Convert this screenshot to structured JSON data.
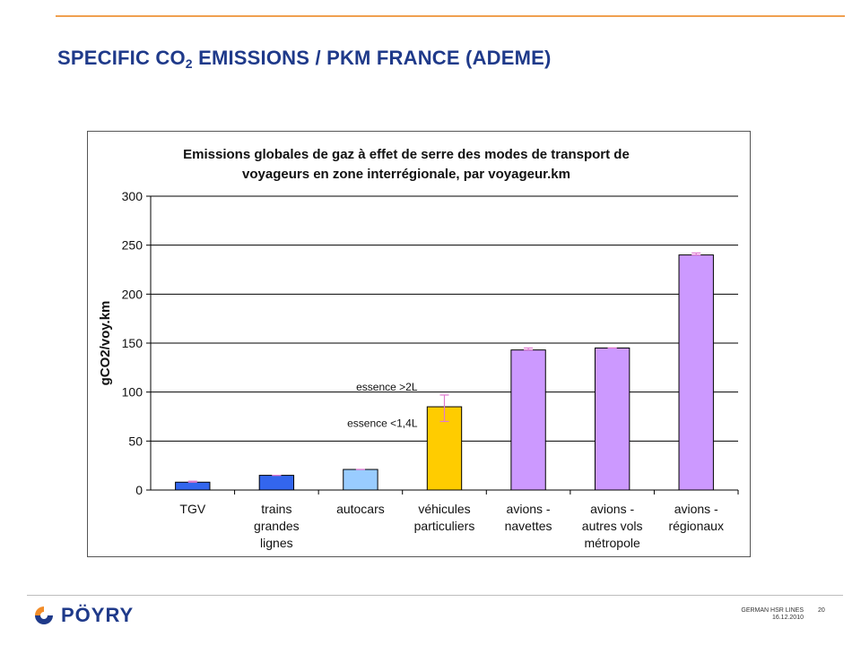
{
  "slide": {
    "title_main": "SPECIFIC CO",
    "title_sub": "2",
    "title_rest": " EMISSIONS / PKM FRANCE (ADEME)",
    "footer_project": "GERMAN HSR LINES",
    "footer_date": "16.12.2010",
    "page_number": "20",
    "logo_text": "PÖYRY",
    "logo_icon": "poyry-swirl-icon",
    "colors": {
      "title": "#1f3a8a",
      "top_rule": "#f0a050",
      "logo_orange": "#f28c28",
      "logo_blue": "#1f3a8a"
    }
  },
  "chart_data": {
    "type": "bar",
    "title_line1": "Emissions globales de gaz à effet de serre des modes de transport de",
    "title_line2": "voyageurs en zone interrégionale, par voyageur.km",
    "ylabel": "gCO2/voy.km",
    "xlabel": "",
    "ylim": [
      0,
      300
    ],
    "yticks": [
      0,
      50,
      100,
      150,
      200,
      250,
      300
    ],
    "grid": true,
    "legend": "none",
    "categories": [
      [
        "TGV"
      ],
      [
        "trains",
        "grandes",
        "lignes"
      ],
      [
        "autocars"
      ],
      [
        "véhicules",
        "particuliers"
      ],
      [
        "avions -",
        "navettes"
      ],
      [
        "avions -",
        "autres vols",
        "métropole"
      ],
      [
        "avions -",
        "régionaux"
      ]
    ],
    "values": [
      8,
      15,
      21,
      85,
      143,
      145,
      240
    ],
    "error_low": [
      8,
      15,
      21,
      70,
      143,
      145,
      240
    ],
    "error_high": [
      9,
      15,
      21,
      97,
      145,
      145,
      242
    ],
    "bar_colors": [
      "#3366ee",
      "#3366ee",
      "#99ccff",
      "#ffcc00",
      "#cc99ff",
      "#cc99ff",
      "#cc99ff"
    ],
    "error_color": "#e07ad0",
    "annotations": [
      {
        "text": "essence >2L",
        "value": 105
      },
      {
        "text": "essence <1,4L",
        "value": 68
      }
    ]
  }
}
